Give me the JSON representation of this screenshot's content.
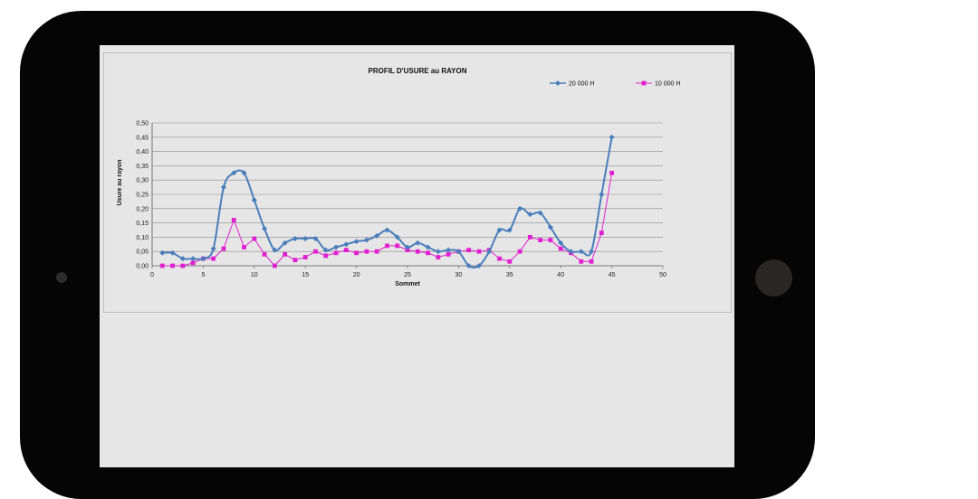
{
  "chart_data": {
    "type": "line",
    "title": "PROFIL D'USURE au RAYON",
    "xlabel": "Sommet",
    "ylabel": "Usure au rayon",
    "xlim": [
      0,
      50
    ],
    "ylim": [
      0,
      0.5
    ],
    "x_ticks": [
      "0",
      "5",
      "10",
      "15",
      "20",
      "25",
      "30",
      "35",
      "40",
      "45",
      "50"
    ],
    "y_ticks": [
      "0,00",
      "0,05",
      "0,10",
      "0,15",
      "0,20",
      "0,25",
      "0,30",
      "0,35",
      "0,40",
      "0,45",
      "0,50"
    ],
    "grid": "horizontal",
    "legend_position": "top-right",
    "x": [
      1,
      2,
      3,
      4,
      5,
      6,
      7,
      8,
      9,
      10,
      11,
      12,
      13,
      14,
      15,
      16,
      17,
      18,
      19,
      20,
      21,
      22,
      23,
      24,
      25,
      26,
      27,
      28,
      29,
      30,
      31,
      32,
      33,
      34,
      35,
      36,
      37,
      38,
      39,
      40,
      41,
      42,
      43,
      44,
      45
    ],
    "series": [
      {
        "name": "20 000 H",
        "color": "#4a7ebb",
        "marker": "diamond",
        "values": [
          0.045,
          0.045,
          0.025,
          0.025,
          0.025,
          0.06,
          0.275,
          0.325,
          0.325,
          0.23,
          0.13,
          0.055,
          0.08,
          0.095,
          0.095,
          0.095,
          0.055,
          0.065,
          0.075,
          0.085,
          0.09,
          0.105,
          0.125,
          0.1,
          0.065,
          0.08,
          0.065,
          0.05,
          0.055,
          0.05,
          0.0,
          0.0,
          0.05,
          0.125,
          0.125,
          0.2,
          0.18,
          0.185,
          0.135,
          0.08,
          0.05,
          0.05,
          0.05,
          0.25,
          0.45
        ]
      },
      {
        "name": "10 000 H",
        "color": "#e020d0",
        "marker": "square",
        "values": [
          0.0,
          0.0,
          0.0,
          0.01,
          0.025,
          0.025,
          0.06,
          0.16,
          0.065,
          0.095,
          0.04,
          0.0,
          0.04,
          0.02,
          0.03,
          0.05,
          0.035,
          0.045,
          0.055,
          0.045,
          0.05,
          0.05,
          0.07,
          0.07,
          0.055,
          0.05,
          0.045,
          0.03,
          0.04,
          0.05,
          0.055,
          0.05,
          0.055,
          0.025,
          0.015,
          0.05,
          0.1,
          0.09,
          0.09,
          0.06,
          0.045,
          0.015,
          0.015,
          0.115,
          0.325
        ]
      }
    ]
  }
}
